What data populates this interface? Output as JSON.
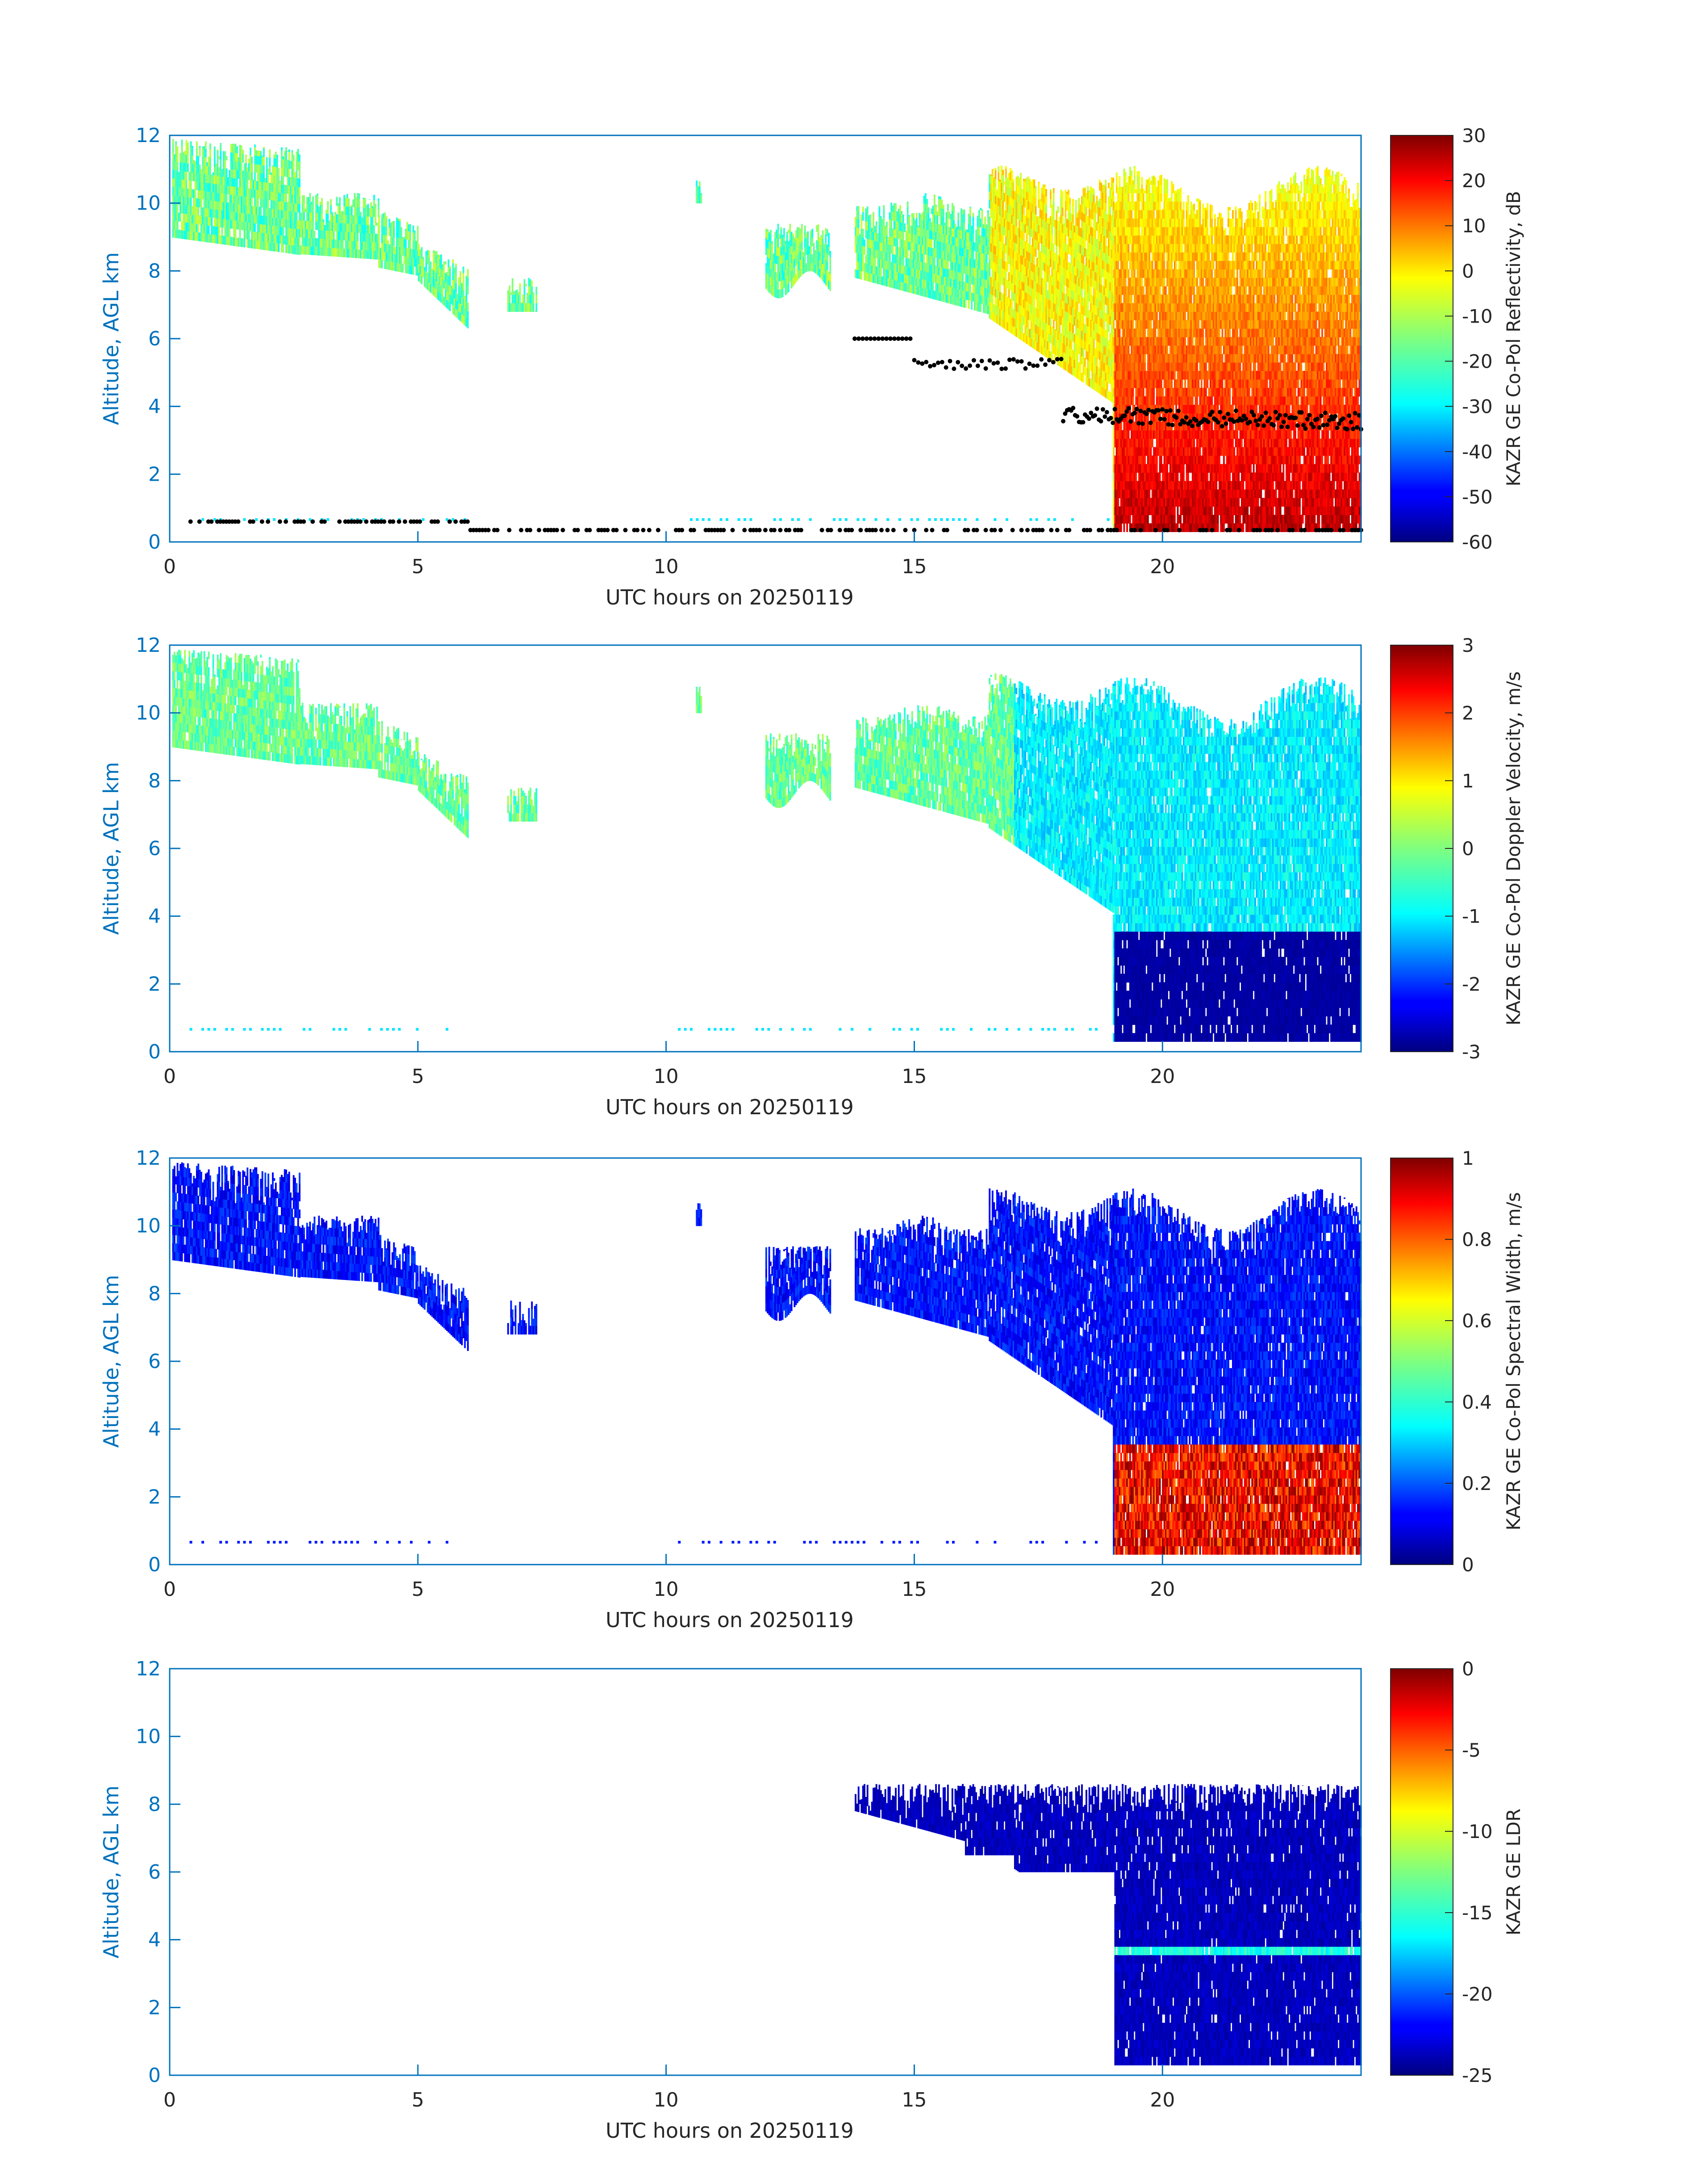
{
  "chart_data": [
    {
      "type": "heatmap",
      "title": "",
      "xlabel": "UTC hours on 20250119",
      "ylabel": "Altitude, AGL km",
      "xlim": [
        0,
        24
      ],
      "ylim": [
        0,
        12
      ],
      "xticks": [
        0,
        5,
        10,
        15,
        20
      ],
      "yticks": [
        0,
        2,
        4,
        6,
        8,
        10,
        12
      ],
      "colorbar": {
        "label": "KAZR GE Co-Pol Reflectivity, dB",
        "min": -60,
        "max": 30,
        "ticks": [
          30,
          20,
          10,
          0,
          -10,
          -20,
          -30,
          -40,
          -50,
          -60
        ]
      },
      "features": "cirrus 8-12 km from 0-8 UTC descending; deep cloud/precipitation 19-24 UTC up to 11 km; cloud-base markers (black dots) near 0.6 km and 3-4 km"
    },
    {
      "type": "heatmap",
      "title": "",
      "xlabel": "UTC hours on 20250119",
      "ylabel": "Altitude, AGL km",
      "xlim": [
        0,
        24
      ],
      "ylim": [
        0,
        12
      ],
      "xticks": [
        0,
        5,
        10,
        15,
        20
      ],
      "yticks": [
        0,
        2,
        4,
        6,
        8,
        10,
        12
      ],
      "colorbar": {
        "label": "KAZR GE Co-Pol Doppler Velocity, m/s",
        "min": -3,
        "max": 3,
        "ticks": [
          3,
          2,
          1,
          0,
          -1,
          -2,
          -3
        ]
      },
      "features": "near-zero velocity in ice cloud; strong downward (-3 m/s) below 3.5 km after 19 UTC"
    },
    {
      "type": "heatmap",
      "title": "",
      "xlabel": "UTC hours on 20250119",
      "ylabel": "Altitude, AGL km",
      "xlim": [
        0,
        24
      ],
      "ylim": [
        0,
        12
      ],
      "xticks": [
        0,
        5,
        10,
        15,
        20
      ],
      "yticks": [
        0,
        2,
        4,
        6,
        8,
        10,
        12
      ],
      "colorbar": {
        "label": "KAZR GE Co-Pol Spectral Width, m/s",
        "min": 0,
        "max": 1,
        "ticks": [
          1,
          0.8,
          0.6,
          0.4,
          0.2,
          0
        ]
      },
      "features": "low width in ice cloud; high width (~0.8-1) below 3.5 km after 19 UTC"
    },
    {
      "type": "heatmap",
      "title": "",
      "xlabel": "UTC hours on 20250119",
      "ylabel": "Altitude, AGL km",
      "xlim": [
        0,
        24
      ],
      "ylim": [
        0,
        12
      ],
      "xticks": [
        0,
        5,
        10,
        15,
        20
      ],
      "yticks": [
        0,
        2,
        4,
        6,
        8,
        10,
        12
      ],
      "colorbar": {
        "label": "KAZR GE LDR",
        "min": -25,
        "max": 0,
        "ticks": [
          0,
          -5,
          -10,
          -15,
          -20,
          -25
        ]
      },
      "features": "mostly -25 in cloud 17-24 UTC; melting layer bright band near 3.5 km (~-17) after 19 UTC"
    }
  ],
  "colors": {
    "axis": "#0072BD",
    "text": "#262626"
  }
}
